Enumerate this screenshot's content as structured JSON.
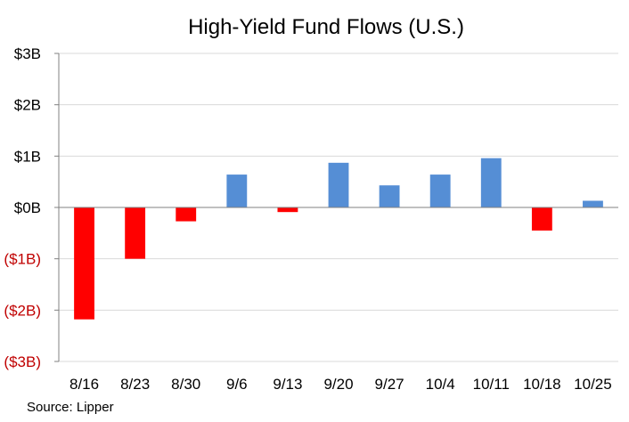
{
  "chart_data": {
    "type": "bar",
    "title": "High-Yield Fund Flows (U.S.)",
    "xlabel": "",
    "ylabel": "",
    "categories": [
      "8/16",
      "8/23",
      "8/30",
      "9/6",
      "9/13",
      "9/20",
      "9/27",
      "10/4",
      "10/11",
      "10/18",
      "10/25"
    ],
    "values": [
      -2.18,
      -1.0,
      -0.27,
      0.64,
      -0.09,
      0.87,
      0.43,
      0.64,
      0.96,
      -0.45,
      0.13
    ],
    "ylim": [
      -3,
      3
    ],
    "yticks": [
      {
        "value": 3,
        "label": "$3B",
        "negative": false
      },
      {
        "value": 2,
        "label": "$2B",
        "negative": false
      },
      {
        "value": 1,
        "label": "$1B",
        "negative": false
      },
      {
        "value": 0,
        "label": "$0B",
        "negative": false
      },
      {
        "value": -1,
        "label": "($1B)",
        "negative": true
      },
      {
        "value": -2,
        "label": "($2B)",
        "negative": true
      },
      {
        "value": -3,
        "label": "($3B)",
        "negative": true
      }
    ],
    "grid": true,
    "legend": "none",
    "colors": {
      "positive": "#558ED5",
      "negative": "#FF0000",
      "negative_tick_label": "#C00000",
      "positive_tick_label": "#000000",
      "grid": "#D9D9D9",
      "axis": "#808080"
    }
  },
  "source": "Source: Lipper"
}
